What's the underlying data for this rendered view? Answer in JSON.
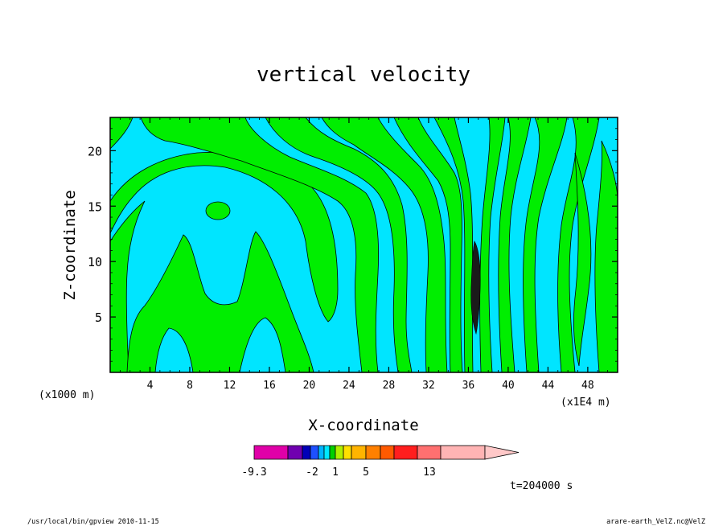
{
  "chart_data": {
    "type": "contour",
    "title": "vertical velocity",
    "xlabel": "X-coordinate",
    "ylabel": "Z-coordinate",
    "x_unit_left": "(x1000 m)",
    "x_unit_right": "(x1E4 m)",
    "xlim": [
      0,
      51
    ],
    "ylim": [
      0,
      23
    ],
    "x_ticks": [
      4,
      8,
      12,
      16,
      20,
      24,
      28,
      32,
      36,
      40,
      44,
      48
    ],
    "y_ticks": [
      5,
      10,
      15,
      20
    ],
    "colorbar": {
      "colors": [
        "#e000a8",
        "#7000b0",
        "#0000b8",
        "#1e50ff",
        "#00b4ff",
        "#00e8ff",
        "#00d000",
        "#b0f000",
        "#ffe000",
        "#ffb400",
        "#ff8000",
        "#ff5a00",
        "#ff1e1e",
        "#ff7070",
        "#ffb4b4",
        "#ffc8c8"
      ],
      "labels": [
        "-9.3",
        "-2",
        "1",
        "5",
        "13"
      ]
    },
    "colors": {
      "positive": "#00ee00",
      "negative": "#00e5ff",
      "contour": "#000000"
    },
    "time_label": "t=204000 s"
  },
  "footer": {
    "left": "/usr/local/bin/gpview   2010-11-15",
    "right": "arare-earth_VelZ.nc@VelZ"
  }
}
